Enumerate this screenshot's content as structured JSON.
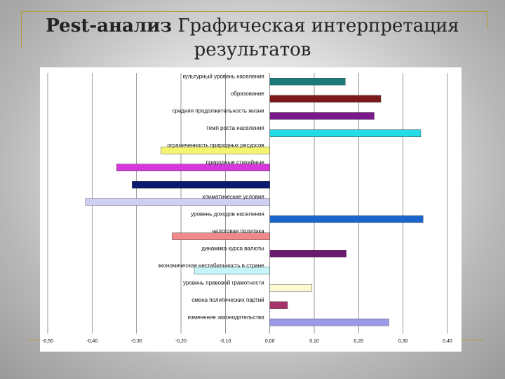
{
  "slide": {
    "title_bold": "Pest-анализ",
    "title_rest": "Графическая интерпретация",
    "title_line2": "результатов"
  },
  "chart_data": {
    "type": "bar",
    "orientation": "horizontal",
    "title": "",
    "xlabel": "",
    "ylabel": "",
    "xlim": [
      -0.5,
      0.4
    ],
    "x_ticks": [
      "-0,50",
      "-0,40",
      "-0,30",
      "-0,20",
      "-0,10",
      "0,00",
      "0,10",
      "0,20",
      "0,30",
      "0,40"
    ],
    "x_tick_values": [
      -0.5,
      -0.4,
      -0.3,
      -0.2,
      -0.1,
      0,
      0.1,
      0.2,
      0.3,
      0.4
    ],
    "grid": "vertical",
    "bars": [
      {
        "label": "культурный уровень населения",
        "value": 0.17,
        "color": "#1a7a7a"
      },
      {
        "label": "образование",
        "value": 0.25,
        "color": "#7a1a1a"
      },
      {
        "label": "средняя продолжительность жизни",
        "value": 0.235,
        "color": "#7a1a8a"
      },
      {
        "label": "темп роста населения",
        "value": 0.34,
        "color": "#22dde8"
      },
      {
        "label": "ограниченность природных ресурсов",
        "value": -0.245,
        "color": "#f4f470"
      },
      {
        "label": "природные стихийные",
        "value": -0.345,
        "color": "#d43adb"
      },
      {
        "label": "",
        "value": -0.31,
        "color": "#0a1a6e"
      },
      {
        "label": "климатические условия",
        "value": -0.415,
        "color": "#cfcff5"
      },
      {
        "label": "уровень доходов населения",
        "value": 0.345,
        "color": "#1a66cc"
      },
      {
        "label": "налоговая политика",
        "value": -0.22,
        "color": "#f08a8a"
      },
      {
        "label": "динамика курса валюты",
        "value": 0.172,
        "color": "#6a1a6e"
      },
      {
        "label": "экономическая нестабильность в стране",
        "value": -0.17,
        "color": "#c7f4f8"
      },
      {
        "label": "уровень правовой грамотности",
        "value": 0.095,
        "color": "#fbfbd0"
      },
      {
        "label": "смена политических партий",
        "value": 0.04,
        "color": "#a8326a"
      },
      {
        "label": "изменение законодательства",
        "value": 0.268,
        "color": "#9a9ae8"
      }
    ]
  }
}
